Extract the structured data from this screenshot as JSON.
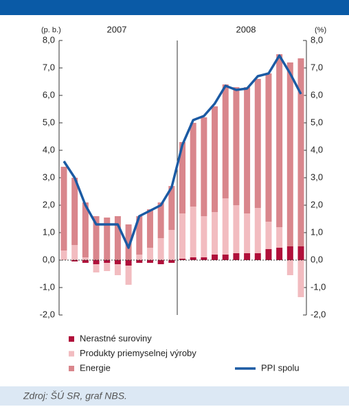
{
  "chart_data": {
    "type": "bar",
    "stacked": true,
    "source": "Zdroj: ŠÚ SR, graf NBS.",
    "left_unit": "(p. b.)",
    "right_unit": "(%)",
    "periods": [
      "2007",
      "2008"
    ],
    "categories": [
      null,
      null,
      null,
      null,
      null,
      null,
      null,
      null,
      null,
      null,
      null,
      null,
      null,
      null,
      null,
      null,
      null,
      null,
      null,
      null,
      null,
      null,
      null
    ],
    "series": [
      {
        "name": "Nerastné suroviny",
        "color": "#b0103a",
        "values": [
          0,
          -0.05,
          -0.1,
          -0.15,
          -0.1,
          -0.15,
          -0.2,
          -0.1,
          -0.1,
          -0.15,
          -0.1,
          0.05,
          0.1,
          0.1,
          0.2,
          0.2,
          0.25,
          0.25,
          0.25,
          0.4,
          0.45,
          0.5,
          0.5
        ]
      },
      {
        "name": "Produkty priemyselnej výroby",
        "color": "#f2bcc0",
        "values": [
          0.35,
          0.55,
          0.1,
          -0.3,
          -0.3,
          -0.4,
          -0.7,
          0.2,
          0.45,
          0.8,
          1.1,
          1.65,
          1.85,
          1.5,
          1.55,
          2.05,
          1.75,
          1.45,
          1.65,
          1.0,
          0.75,
          -0.55,
          -1.35
        ]
      },
      {
        "name": "Energie",
        "color": "#d9868c",
        "values": [
          3.05,
          2.45,
          2.0,
          1.6,
          1.55,
          1.6,
          1.3,
          1.4,
          1.4,
          1.3,
          1.6,
          2.6,
          3.05,
          3.6,
          3.85,
          4.15,
          4.3,
          4.6,
          4.7,
          5.4,
          6.3,
          6.7,
          6.85
        ]
      },
      {
        "name": "PPI spolu",
        "color": "#1b5aa3",
        "kind": "line",
        "values": [
          3.6,
          3.0,
          2.0,
          1.3,
          1.3,
          1.3,
          0.45,
          1.6,
          1.8,
          2.0,
          2.65,
          4.2,
          5.1,
          5.25,
          5.7,
          6.35,
          6.2,
          6.25,
          6.7,
          6.8,
          7.45,
          6.8,
          6.05
        ]
      }
    ],
    "ylim": [
      -2,
      8
    ],
    "yticks": [
      {
        "value": 8,
        "label": "8,0"
      },
      {
        "value": 7,
        "label": "7,0"
      },
      {
        "value": 6,
        "label": "6,0"
      },
      {
        "value": 5,
        "label": "5,0"
      },
      {
        "value": 4,
        "label": "4,0"
      },
      {
        "value": 3,
        "label": "3,0"
      },
      {
        "value": 2,
        "label": "2,0"
      },
      {
        "value": 1,
        "label": "1,0"
      },
      {
        "value": 0,
        "label": "0,0"
      },
      {
        "value": -1,
        "label": "-1,0"
      },
      {
        "value": -2,
        "label": "-2,0"
      }
    ]
  }
}
